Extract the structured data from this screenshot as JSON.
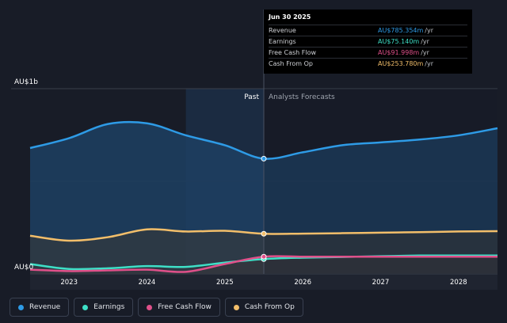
{
  "chart_data": {
    "type": "area",
    "x": [
      2022.5,
      2023.0,
      2023.5,
      2024.0,
      2024.5,
      2025.0,
      2025.5,
      2026.0,
      2026.5,
      2027.0,
      2027.5,
      2028.0,
      2028.5
    ],
    "series": [
      {
        "name": "Revenue",
        "color": "#2e9be6",
        "values": [
          860,
          930,
          1030,
          1035,
          950,
          880,
          785,
          830,
          880,
          900,
          920,
          950,
          1000
        ]
      },
      {
        "name": "Earnings",
        "color": "#3ee0c7",
        "values": [
          40,
          5,
          10,
          25,
          20,
          50,
          75,
          85,
          90,
          95,
          100,
          100,
          100
        ]
      },
      {
        "name": "Free Cash Flow",
        "color": "#e0508a",
        "values": [
          0,
          -10,
          -5,
          0,
          -15,
          40,
          92,
          92,
          92,
          92,
          92,
          92,
          92
        ]
      },
      {
        "name": "Cash From Op",
        "color": "#f2be6a",
        "values": [
          240,
          205,
          230,
          285,
          270,
          275,
          254,
          255,
          258,
          262,
          265,
          270,
          272
        ]
      }
    ],
    "y_labels": {
      "top": "AU$1b",
      "bottom": "AU$0"
    },
    "x_ticks": [
      "2023",
      "2024",
      "2025",
      "2026",
      "2027",
      "2028"
    ],
    "x_tick_values": [
      2023,
      2024,
      2025,
      2026,
      2027,
      2028
    ],
    "divider_x": 2025.5,
    "highlight_band": [
      2024.5,
      2025.5
    ],
    "ylim": [
      -30,
      1280
    ],
    "xlim": [
      2022.5,
      2028.5
    ],
    "past_label": "Past",
    "forecast_label": "Analysts Forecasts"
  },
  "tooltip": {
    "date": "Jun 30 2025",
    "rows": [
      {
        "label": "Revenue",
        "value": "AU$785.354m",
        "unit": "/yr",
        "color": "#2e9be6"
      },
      {
        "label": "Earnings",
        "value": "AU$75.140m",
        "unit": "/yr",
        "color": "#3ee0c7"
      },
      {
        "label": "Free Cash Flow",
        "value": "AU$91.998m",
        "unit": "/yr",
        "color": "#e0508a"
      },
      {
        "label": "Cash From Op",
        "value": "AU$253.780m",
        "unit": "/yr",
        "color": "#f2be6a"
      }
    ]
  },
  "legend": [
    {
      "label": "Revenue",
      "color": "#2e9be6"
    },
    {
      "label": "Earnings",
      "color": "#3ee0c7"
    },
    {
      "label": "Free Cash Flow",
      "color": "#e0508a"
    },
    {
      "label": "Cash From Op",
      "color": "#f2be6a"
    }
  ]
}
